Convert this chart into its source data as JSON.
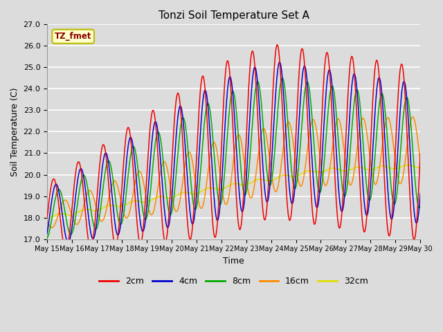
{
  "title": "Tonzi Soil Temperature Set A",
  "xlabel": "Time",
  "ylabel": "Soil Temperature (C)",
  "ylim": [
    17.0,
    27.0
  ],
  "yticks": [
    17.0,
    18.0,
    19.0,
    20.0,
    21.0,
    22.0,
    23.0,
    24.0,
    25.0,
    26.0,
    27.0
  ],
  "background_color": "#dcdcdc",
  "legend_label": "TZ_fmet",
  "legend_text_color": "#8b0000",
  "legend_bg_color": "#ffffcc",
  "legend_border_color": "#bbbb00",
  "series_colors": {
    "2cm": "#ee0000",
    "4cm": "#0000cc",
    "8cm": "#00aa00",
    "16cm": "#ff8800",
    "32cm": "#dddd00"
  },
  "n_days": 15,
  "start_day": 15,
  "points_per_day": 48
}
